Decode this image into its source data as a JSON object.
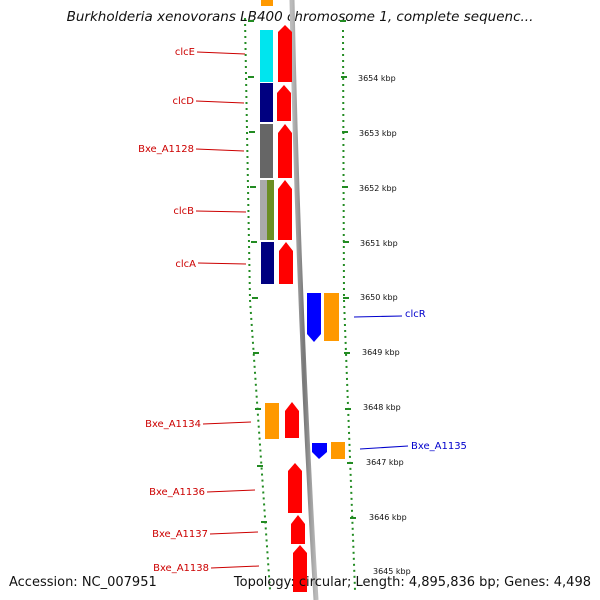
{
  "title": "Burkholderia xenovorans LB400 chromosome 1, complete sequenc...",
  "footer": {
    "accession": "Accession: NC_007951",
    "summary": "Topology: circular; Length: 4,895,836 bp; Genes: 4,498"
  },
  "scale_labels": [
    "3654 kbp",
    "3653 kbp",
    "3652 kbp",
    "3651 kbp",
    "3650 kbp",
    "3649 kbp",
    "3648 kbp",
    "3647 kbp",
    "3646 kbp",
    "3645 kbp"
  ],
  "gene_labels": [
    {
      "text": "clcE",
      "strand": "reverse"
    },
    {
      "text": "clcD",
      "strand": "reverse"
    },
    {
      "text": "Bxe_A1128",
      "strand": "reverse"
    },
    {
      "text": "clcB",
      "strand": "reverse"
    },
    {
      "text": "clcA",
      "strand": "reverse"
    },
    {
      "text": "clcR",
      "strand": "forward"
    },
    {
      "text": "Bxe_A1134",
      "strand": "reverse"
    },
    {
      "text": "Bxe_A1135",
      "strand": "forward"
    },
    {
      "text": "Bxe_A1136",
      "strand": "reverse"
    },
    {
      "text": "Bxe_A1137",
      "strand": "reverse"
    },
    {
      "text": "Bxe_A1138",
      "strand": "reverse"
    }
  ],
  "colors": {
    "reverse_label": "#cc0000",
    "forward_label": "#0000cc",
    "scale_ticks": "#228b22",
    "backbone": "#888888",
    "cog_cyan": "#00e5ee",
    "cog_navy": "#000080",
    "cog_gray": "#666666",
    "cog_silver": "#aaaaaa",
    "cog_olive": "#6b8e23",
    "cog_orange": "#ff9900",
    "cog_blue": "#0000ff",
    "cds_red": "#ff0000"
  }
}
